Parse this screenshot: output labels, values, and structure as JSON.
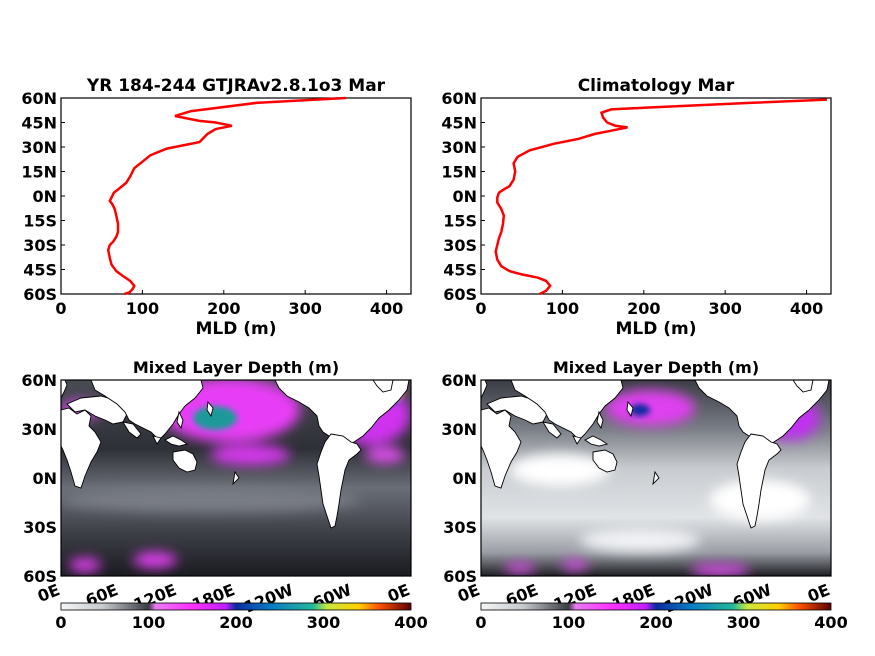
{
  "colors": {
    "profile_line": "#ff0000",
    "land": "#ffffff",
    "axis": "#000000",
    "colormap": [
      "#f2f4f5",
      "#d6d9dc",
      "#a9adb3",
      "#6e737b",
      "#3a3d44",
      "#1c1d22",
      "#ff66ff",
      "#e020ff",
      "#0a7cc4",
      "#1fd0a0",
      "#e8e84a",
      "#ff8000",
      "#d00000",
      "#6a0000"
    ]
  },
  "chart_data": [
    {
      "type": "line",
      "title": "YR 184-244 GTJRAv2.8.1o3 Mar",
      "xlabel": "MLD (m)",
      "xlim": [
        0,
        430
      ],
      "ylim": [
        -60,
        60
      ],
      "xticks": [
        "0",
        "100",
        "200",
        "300",
        "400"
      ],
      "yticks": [
        "60N",
        "45N",
        "30N",
        "15N",
        "0N",
        "15S",
        "30S",
        "45S",
        "60S"
      ],
      "grid": false,
      "series": [
        {
          "x": [
            350,
            240,
            160,
            140,
            150,
            170,
            190,
            210,
            190,
            180,
            170,
            130,
            110,
            100,
            90,
            85,
            80,
            70,
            65,
            62,
            60,
            63,
            66,
            68,
            70,
            70,
            68,
            64,
            60,
            58,
            60,
            62,
            68,
            76,
            85,
            90,
            88,
            84,
            78
          ],
          "y": [
            60,
            57,
            52,
            49,
            48,
            46,
            45,
            43,
            41,
            38,
            33,
            29,
            25,
            21,
            17,
            12,
            8,
            4,
            2,
            -1,
            -3,
            -5,
            -8,
            -12,
            -17,
            -22,
            -25,
            -28,
            -30,
            -33,
            -38,
            -42,
            -46,
            -49,
            -52,
            -55,
            -57,
            -59,
            -60
          ]
        }
      ]
    },
    {
      "type": "line",
      "title": "Climatology Mar",
      "xlabel": "MLD (m)",
      "xlim": [
        0,
        430
      ],
      "ylim": [
        -60,
        60
      ],
      "xticks": [
        "0",
        "100",
        "200",
        "300",
        "400"
      ],
      "yticks": [
        "60N",
        "45N",
        "30N",
        "15N",
        "0N",
        "15S",
        "30S",
        "45S",
        "60S"
      ],
      "grid": false,
      "series": [
        {
          "x": [
            425,
            330,
            200,
            160,
            148,
            150,
            155,
            165,
            180,
            160,
            140,
            120,
            90,
            60,
            45,
            40,
            42,
            40,
            35,
            28,
            22,
            20,
            20,
            25,
            28,
            27,
            25,
            22,
            20,
            18,
            20,
            25,
            35,
            50,
            70,
            80,
            85,
            80,
            72
          ],
          "y": [
            59,
            57,
            54,
            53,
            51,
            48,
            45,
            43,
            42,
            40,
            38,
            35,
            32,
            28,
            24,
            20,
            15,
            10,
            6,
            4,
            2,
            -1,
            -4,
            -8,
            -12,
            -17,
            -22,
            -26,
            -30,
            -34,
            -39,
            -43,
            -46,
            -48,
            -50,
            -52,
            -55,
            -58,
            -60
          ]
        }
      ]
    },
    {
      "type": "heatmap",
      "title": "Mixed Layer Depth (m)",
      "xticks": [
        "0E",
        "60E",
        "120E",
        "180E",
        "120W",
        "60W",
        "0E"
      ],
      "yticks": [
        "60N",
        "30N",
        "0N",
        "30S",
        "60S"
      ],
      "colorbar_ticks": [
        "0",
        "100",
        "200",
        "300",
        "400"
      ],
      "clim": [
        0,
        400
      ]
    },
    {
      "type": "heatmap",
      "title": "Mixed Layer Depth (m)",
      "xticks": [
        "0E",
        "60E",
        "120E",
        "180E",
        "120W",
        "60W",
        "0E"
      ],
      "yticks": [
        "60N",
        "30N",
        "0N",
        "30S",
        "60S"
      ],
      "colorbar_ticks": [
        "0",
        "100",
        "200",
        "300",
        "400"
      ],
      "clim": [
        0,
        400
      ]
    }
  ]
}
